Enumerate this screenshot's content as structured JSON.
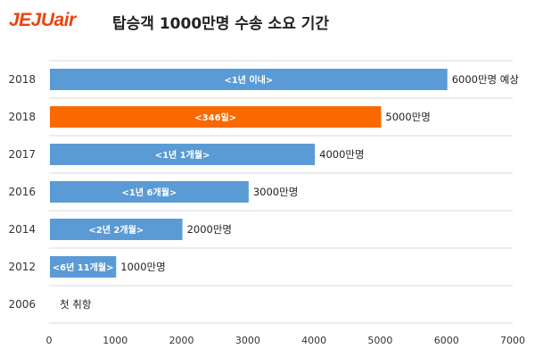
{
  "chart_data": {
    "type": "bar",
    "orientation": "horizontal",
    "logo_text": "JEJUair",
    "title": "탑승객 1000만명 수송 소요 기간",
    "categories": [
      "2018",
      "2018",
      "2017",
      "2016",
      "2014",
      "2012",
      "2006"
    ],
    "values": [
      6000,
      5000,
      4000,
      3000,
      2000,
      1000,
      0
    ],
    "inside_labels": [
      "<1년 이내>",
      "<346일>",
      "<1년 1개월>",
      "<1년 6개월>",
      "<2년 2개월>",
      "<6년 11개월>",
      ""
    ],
    "outside_labels": [
      "6000만명 예상",
      "5000만명",
      "4000만명",
      "3000만명",
      "2000만명",
      "1000만명",
      "첫 취항"
    ],
    "highlight_index": 1,
    "xlim": [
      0,
      7000
    ],
    "x_ticks": [
      "0",
      "1000",
      "2000",
      "3000",
      "4000",
      "5000",
      "6000",
      "7000"
    ],
    "grid": "horizontal separators",
    "colors": {
      "bar": "#5b9bd5",
      "highlight": "#fa6800",
      "logo": "#e8440f"
    }
  }
}
